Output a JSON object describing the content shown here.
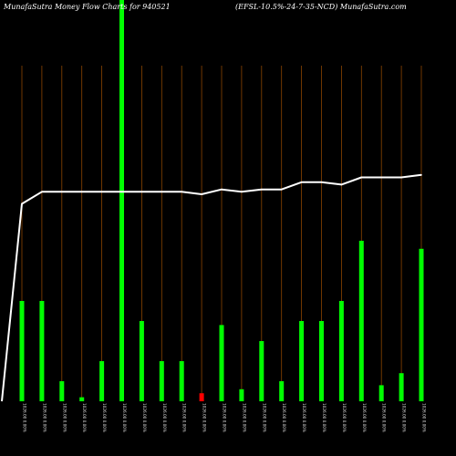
{
  "header": {
    "title_left": "MunafaSutra  Money Flow  Charts for 940521",
    "title_right": "(EFSL-10.5%-24-7-35-NCD) MunafaSutra.com"
  },
  "colors": {
    "background": "#000000",
    "bar_up": "#00ff00",
    "bar_down": "#ff0000",
    "grid": "#8b4500",
    "line": "#ffffff"
  },
  "chart_data": {
    "type": "bar",
    "title": "MunafaSutra  Money Flow  Charts for 940521",
    "subtitle": "(EFSL-10.5%-24-7-35-NCD) MunafaSutra.com",
    "categories": [
      "1026.00 0.00%",
      "1026.00 0.00%",
      "1026.00 0.00%",
      "1026.00 0.00%",
      "1026.00 0.00%",
      "1026.00 0.00%",
      "1026.00 0.00%",
      "1026.00 0.00%",
      "1026.00 0.00%",
      "1026.00 0.00%",
      "1026.00 0.00%",
      "1026.00 0.00%",
      "1026.00 0.00%",
      "1026.00 0.00%",
      "1026.00 0.00%",
      "1026.00 0.00%",
      "1026.00 0.00%",
      "1026.00 0.00%",
      "1026.00 0.00%",
      "1026.00 0.00%",
      "1026.00 0.00%"
    ],
    "series": [
      {
        "kind": "bar",
        "values": [
          25,
          25,
          5,
          1,
          10,
          100,
          20,
          10,
          10,
          2,
          19,
          3,
          15,
          5,
          20,
          20,
          25,
          40,
          4,
          7,
          38
        ],
        "colors": [
          "#00ff00",
          "#00ff00",
          "#00ff00",
          "#00ff00",
          "#00ff00",
          "#00ff00",
          "#00ff00",
          "#00ff00",
          "#00ff00",
          "#ff0000",
          "#00ff00",
          "#00ff00",
          "#00ff00",
          "#00ff00",
          "#00ff00",
          "#00ff00",
          "#00ff00",
          "#00ff00",
          "#00ff00",
          "#00ff00",
          "#00ff00"
        ]
      },
      {
        "kind": "line",
        "values": [
          82,
          87,
          87,
          87,
          87,
          87,
          87,
          87,
          87,
          86,
          88,
          87,
          88,
          88,
          91,
          91,
          90,
          93,
          93,
          93,
          94
        ]
      }
    ],
    "ylim": [
      0,
      100
    ],
    "grid": true
  }
}
